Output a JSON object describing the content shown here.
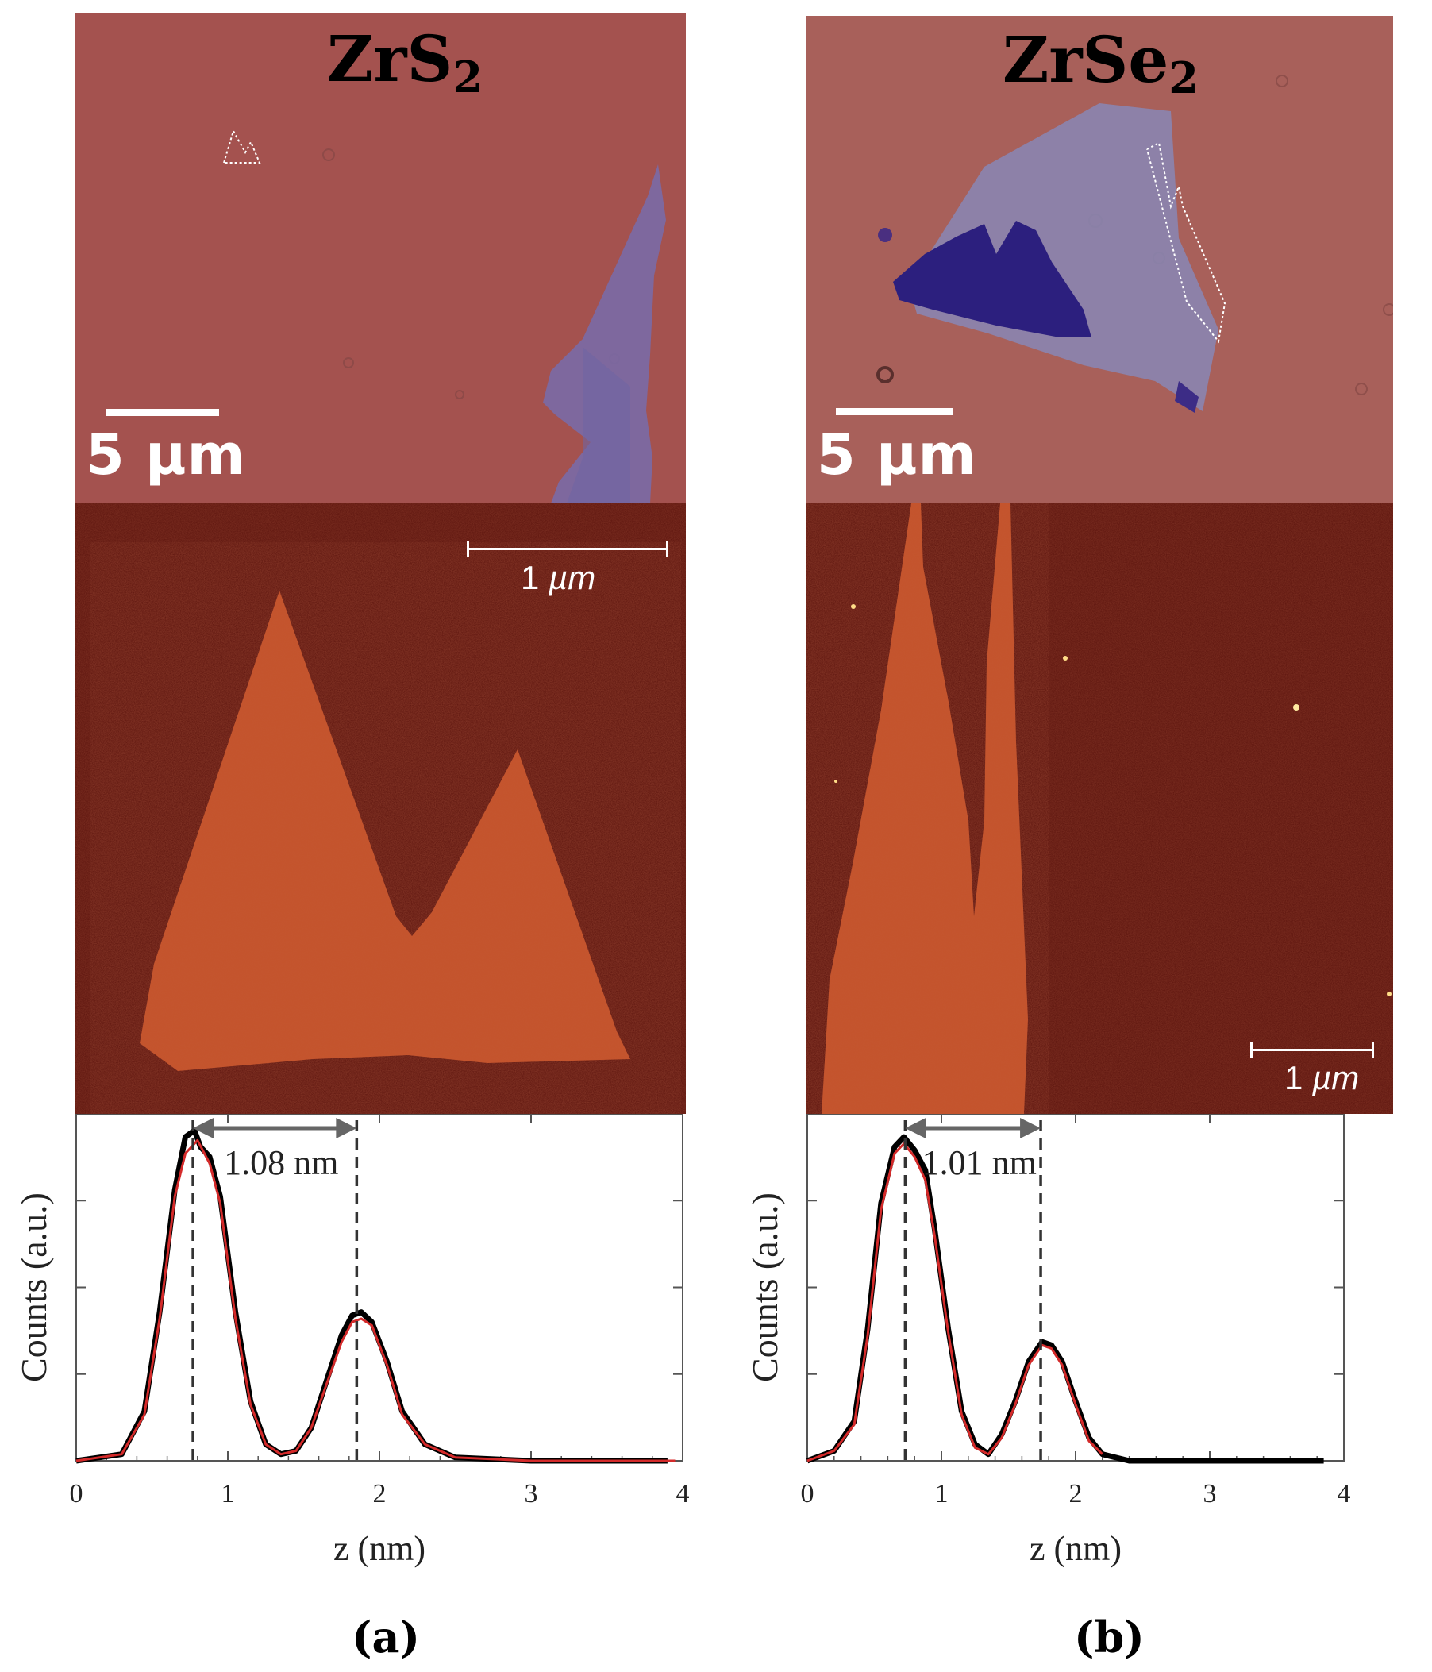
{
  "panels": [
    {
      "id": "a",
      "caption": "(a)",
      "material": {
        "base": "ZrS",
        "sub": "2"
      },
      "optical_scale": "5 µm",
      "afm_scale": {
        "value": "1 ",
        "unit": "µm"
      },
      "colors": {
        "optical_bg": "#a4524f",
        "flake": "#7a6aa6",
        "afm_bg": "#5a120c",
        "afm_flake": "#c4532b"
      }
    },
    {
      "id": "b",
      "caption": "(b)",
      "material": {
        "base": "ZrSe",
        "sub": "2"
      },
      "optical_scale": "5 µm",
      "afm_scale": {
        "value": "1 ",
        "unit": "µm"
      },
      "colors": {
        "optical_bg": "#a8605a",
        "flake": "#8a85b0",
        "dark_flake": "#2c1f7e",
        "afm_bg": "#5a120c",
        "afm_flake": "#c4532b"
      }
    }
  ],
  "chart_data": [
    {
      "type": "line",
      "panel": "a",
      "xlabel": "z (nm)",
      "ylabel": "Counts (a.u.)",
      "xlim": [
        0,
        4
      ],
      "xticks": [
        "0",
        "1",
        "2",
        "3",
        "4"
      ],
      "ylim": [
        0,
        1.05
      ],
      "series": [
        {
          "color": "#000000",
          "x": [
            0,
            0.3,
            0.45,
            0.55,
            0.65,
            0.72,
            0.78,
            0.82,
            0.88,
            0.95,
            1.05,
            1.15,
            1.25,
            1.35,
            1.45,
            1.55,
            1.65,
            1.75,
            1.82,
            1.88,
            1.95,
            2.05,
            2.15,
            2.3,
            2.5,
            3.0,
            3.5,
            3.9
          ],
          "y": [
            0,
            0.02,
            0.15,
            0.45,
            0.82,
            0.98,
            1.0,
            0.95,
            0.92,
            0.8,
            0.45,
            0.18,
            0.05,
            0.02,
            0.03,
            0.1,
            0.24,
            0.38,
            0.44,
            0.45,
            0.42,
            0.3,
            0.15,
            0.05,
            0.01,
            0,
            0,
            0
          ]
        },
        {
          "color": "#d42a2a",
          "x": [
            0,
            0.3,
            0.45,
            0.55,
            0.65,
            0.72,
            0.8,
            0.88,
            0.95,
            1.05,
            1.15,
            1.25,
            1.35,
            1.45,
            1.55,
            1.65,
            1.75,
            1.82,
            1.88,
            1.95,
            2.05,
            2.15,
            2.3,
            2.5,
            3.0,
            3.5,
            3.95
          ],
          "y": [
            0,
            0.02,
            0.14,
            0.43,
            0.8,
            0.93,
            0.97,
            0.9,
            0.78,
            0.43,
            0.17,
            0.05,
            0.02,
            0.03,
            0.1,
            0.23,
            0.36,
            0.42,
            0.43,
            0.41,
            0.29,
            0.14,
            0.05,
            0.01,
            0,
            0,
            0
          ]
        }
      ],
      "annotation": {
        "label": "1.08 nm",
        "x1": 0.77,
        "x2": 1.85
      }
    },
    {
      "type": "line",
      "panel": "b",
      "xlabel": "z (nm)",
      "ylabel": "Counts (a.u.)",
      "xlim": [
        0,
        4
      ],
      "xticks": [
        "0",
        "1",
        "2",
        "3",
        "4"
      ],
      "ylim": [
        0,
        1.05
      ],
      "series": [
        {
          "color": "#000000",
          "x": [
            0,
            0.2,
            0.35,
            0.45,
            0.55,
            0.65,
            0.72,
            0.8,
            0.88,
            0.95,
            1.05,
            1.15,
            1.25,
            1.35,
            1.45,
            1.55,
            1.65,
            1.75,
            1.82,
            1.9,
            2.0,
            2.1,
            2.2,
            2.4,
            2.8,
            3.2,
            3.85
          ],
          "y": [
            0,
            0.03,
            0.12,
            0.4,
            0.78,
            0.95,
            0.98,
            0.94,
            0.88,
            0.7,
            0.4,
            0.15,
            0.05,
            0.02,
            0.08,
            0.18,
            0.3,
            0.36,
            0.35,
            0.3,
            0.18,
            0.07,
            0.02,
            0,
            0,
            0,
            0
          ]
        },
        {
          "color": "#d42a2a",
          "x": [
            0,
            0.2,
            0.35,
            0.45,
            0.55,
            0.65,
            0.72,
            0.8,
            0.88,
            0.95,
            1.05,
            1.15,
            1.25,
            1.35,
            1.45,
            1.55,
            1.65,
            1.75,
            1.82,
            1.9,
            2.0,
            2.1,
            2.2
          ],
          "y": [
            0,
            0.03,
            0.11,
            0.38,
            0.76,
            0.93,
            0.96,
            0.92,
            0.85,
            0.68,
            0.39,
            0.14,
            0.04,
            0.02,
            0.07,
            0.17,
            0.29,
            0.35,
            0.34,
            0.29,
            0.17,
            0.06,
            0.02
          ]
        }
      ],
      "annotation": {
        "label": "1.01 nm",
        "x1": 0.73,
        "x2": 1.74
      }
    }
  ]
}
